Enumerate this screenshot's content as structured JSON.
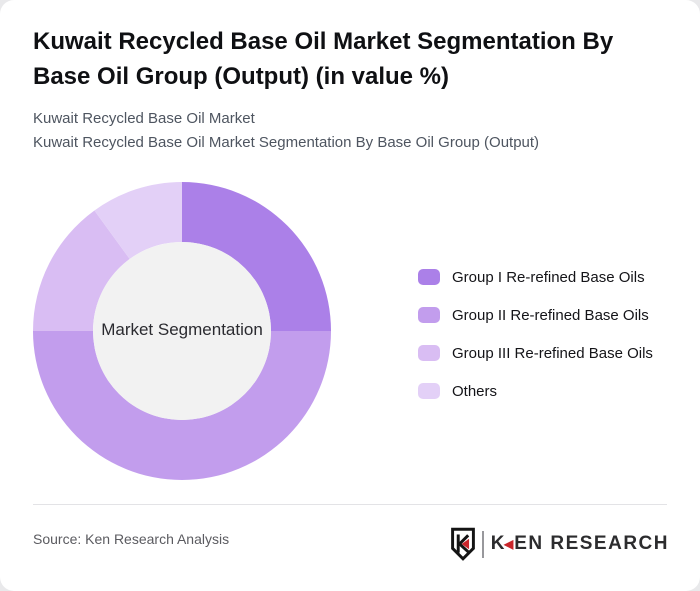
{
  "header": {
    "title": "Kuwait Recycled Base Oil Market Segmentation By Base Oil Group (Output) (in value %)",
    "subtitle_line1": "Kuwait Recycled Base Oil Market",
    "subtitle_line2": "Kuwait Recycled Base Oil Market Segmentation By Base Oil Group (Output)"
  },
  "chart_data": {
    "type": "pie",
    "donut": true,
    "title": "Kuwait Recycled Base Oil Market Segmentation By Base Oil Group (Output) (in value %)",
    "center_label": "Market Segmentation",
    "categories": [
      "Group I Re-refined Base Oils",
      "Group II Re-refined Base Oils",
      "Group III Re-refined Base Oils",
      "Others"
    ],
    "values": [
      25,
      50,
      15,
      10
    ],
    "unit": "value %",
    "colors": [
      "#ab80e8",
      "#c29ded",
      "#d9bdf3",
      "#e3d0f7"
    ],
    "hole_color": "#f2f2f2",
    "start_angle_deg": 0,
    "direction": "clockwise",
    "legend_position": "right",
    "data_labels_shown": false
  },
  "footer": {
    "source": "Source: Ken Research Analysis",
    "logo": {
      "shield_letter": "K",
      "brand_first_letter": "K",
      "brand_triangle": "◀",
      "brand_rest": "EN RESEARCH",
      "accent_color": "#c9252b"
    }
  }
}
